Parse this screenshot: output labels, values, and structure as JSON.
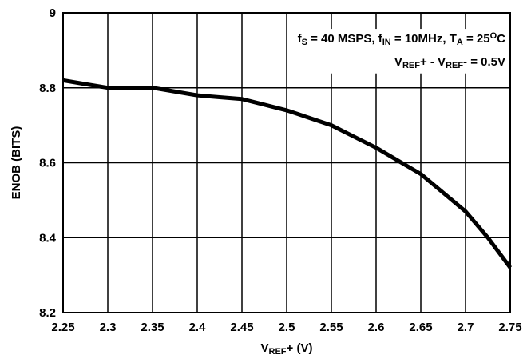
{
  "chart_data": {
    "type": "line",
    "xlabel": {
      "main": "V",
      "sub": "REF",
      "tail": "+ (V)"
    },
    "ylabel": "ENOB (BITS)",
    "xlim": [
      2.25,
      2.75
    ],
    "ylim": [
      8.2,
      9.0
    ],
    "x_ticks": [
      2.25,
      2.3,
      2.35,
      2.4,
      2.45,
      2.5,
      2.55,
      2.6,
      2.65,
      2.7,
      2.75
    ],
    "x_tick_labels": [
      "2.25",
      "2.3",
      "2.35",
      "2.4",
      "2.45",
      "2.5",
      "2.55",
      "2.6",
      "2.65",
      "2.7",
      "2.75"
    ],
    "y_ticks": [
      8.2,
      8.4,
      8.6,
      8.8,
      9.0
    ],
    "y_tick_labels": [
      "8.2",
      "8.4",
      "8.6",
      "8.8",
      "9"
    ],
    "grid": true,
    "legend": null,
    "annotation": {
      "line1": [
        {
          "text": "f",
          "style": "normal"
        },
        {
          "text": "S",
          "style": "sub"
        },
        {
          "text": " = 40 MSPS, f",
          "style": "normal"
        },
        {
          "text": "IN",
          "style": "sub"
        },
        {
          "text": " = 10MHz, T",
          "style": "normal"
        },
        {
          "text": "A",
          "style": "sub"
        },
        {
          "text": " = 25",
          "style": "normal"
        },
        {
          "text": "O",
          "style": "sup"
        },
        {
          "text": "C",
          "style": "normal"
        }
      ],
      "line2": [
        {
          "text": "V",
          "style": "normal"
        },
        {
          "text": "REF",
          "style": "sub"
        },
        {
          "text": "+ - V",
          "style": "normal"
        },
        {
          "text": "REF",
          "style": "sub"
        },
        {
          "text": "- = 0.5V",
          "style": "normal"
        }
      ]
    },
    "series": [
      {
        "x": [
          2.25,
          2.275,
          2.3,
          2.325,
          2.35,
          2.375,
          2.4,
          2.425,
          2.45,
          2.475,
          2.5,
          2.525,
          2.55,
          2.575,
          2.6,
          2.625,
          2.65,
          2.675,
          2.7,
          2.725,
          2.75
        ],
        "y": [
          8.82,
          8.81,
          8.8,
          8.8,
          8.8,
          8.79,
          8.78,
          8.775,
          8.77,
          8.755,
          8.74,
          8.72,
          8.7,
          8.67,
          8.64,
          8.605,
          8.57,
          8.52,
          8.47,
          8.4,
          8.32
        ]
      }
    ]
  }
}
